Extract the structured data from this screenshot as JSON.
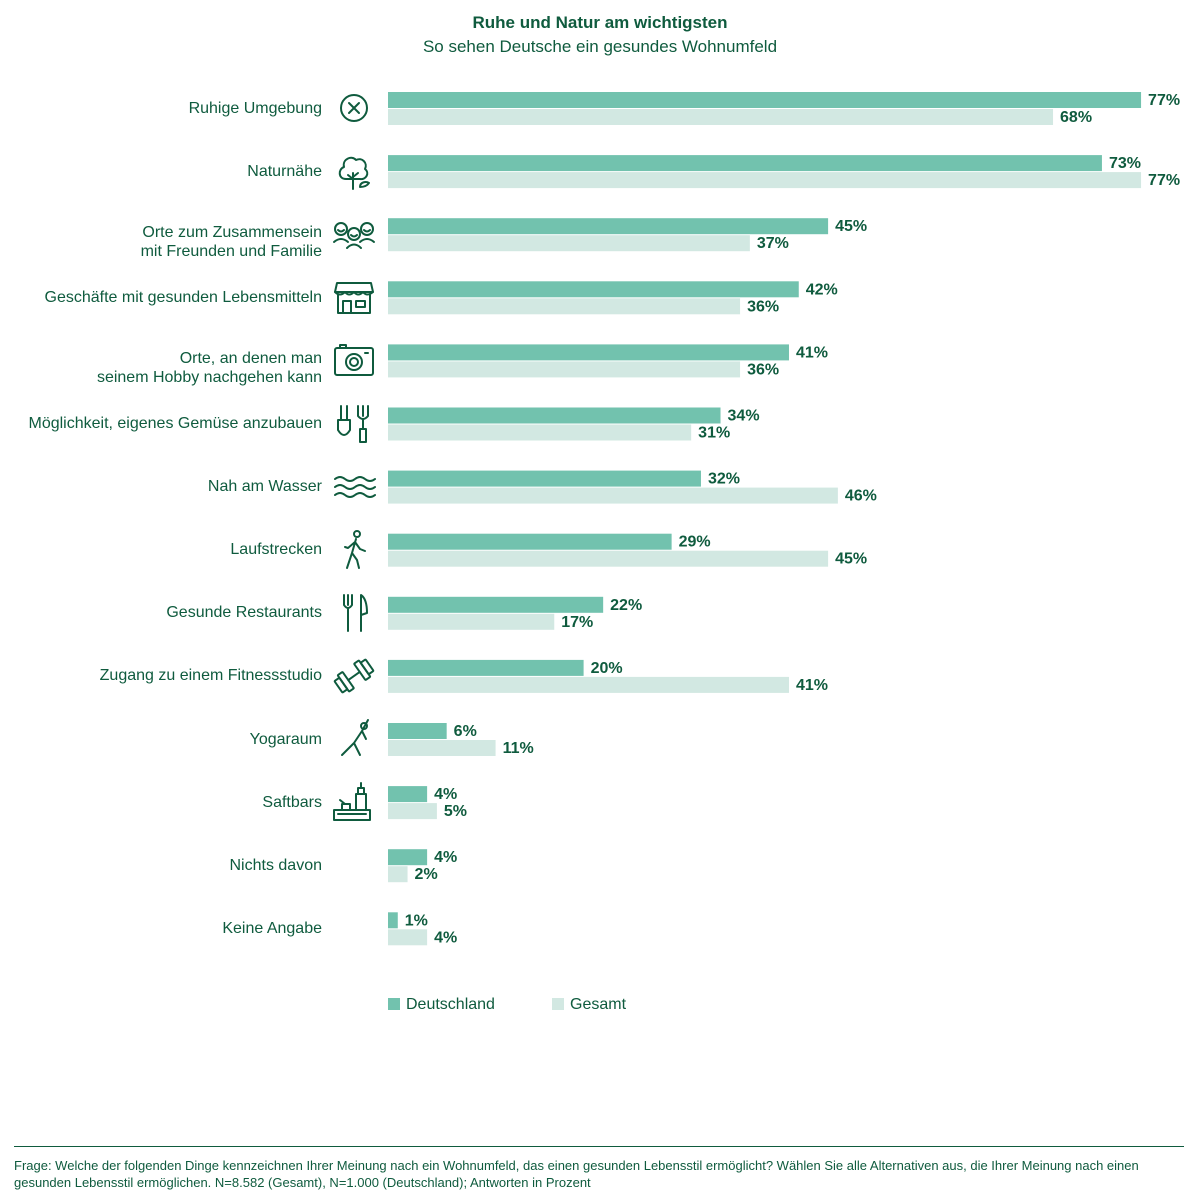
{
  "header": {
    "title": "Ruhe und Natur am wichtigsten",
    "subtitle": "So sehen Deutsche ein gesundes Wohnumfeld"
  },
  "colors": {
    "deutschland": "#72c2ae",
    "gesamt": "#d2e8e2",
    "text": "#0f5b3e"
  },
  "chart_data": {
    "type": "bar",
    "orientation": "horizontal",
    "title": "Ruhe und Natur am wichtigsten",
    "subtitle": "So sehen Deutsche ein gesundes Wohnumfeld",
    "unit": "%",
    "categories": [
      "Ruhige Umgebung",
      "Naturnähe",
      "Orte zum Zusammensein mit Freunden und Familie",
      "Geschäfte mit gesunden Lebensmitteln",
      "Orte, an denen man seinem Hobby nachgehen kann",
      "Möglichkeit, eigenes Gemüse anzubauen",
      "Nah am Wasser",
      "Laufstrecken",
      "Gesunde Restaurants",
      "Zugang zu einem Fitnessstudio",
      "Yogaraum",
      "Saftbars",
      "Nichts davon",
      "Keine Angabe"
    ],
    "category_lines": [
      [
        "Ruhige Umgebung"
      ],
      [
        "Naturnähe"
      ],
      [
        "Orte zum Zusammensein",
        "mit Freunden und Familie"
      ],
      [
        "Geschäfte mit gesunden Lebensmitteln"
      ],
      [
        "Orte, an denen man",
        "seinem Hobby nachgehen kann"
      ],
      [
        "Möglichkeit, eigenes Gemüse anzubauen"
      ],
      [
        "Nah am Wasser"
      ],
      [
        "Laufstrecken"
      ],
      [
        "Gesunde Restaurants"
      ],
      [
        "Zugang zu einem Fitnessstudio"
      ],
      [
        "Yogaraum"
      ],
      [
        "Saftbars"
      ],
      [
        "Nichts davon"
      ],
      [
        "Keine Angabe"
      ]
    ],
    "icons": [
      "x-circle-icon",
      "tree-icon",
      "people-group-icon",
      "shop-icon",
      "camera-icon",
      "garden-tools-icon",
      "water-waves-icon",
      "walking-person-icon",
      "cutlery-icon",
      "dumbbell-icon",
      "yoga-pose-icon",
      "juice-bar-icon",
      "",
      ""
    ],
    "series": [
      {
        "name": "Deutschland",
        "values": [
          77,
          73,
          45,
          42,
          41,
          34,
          32,
          29,
          22,
          20,
          6,
          4,
          4,
          1
        ]
      },
      {
        "name": "Gesamt",
        "values": [
          68,
          77,
          37,
          36,
          36,
          31,
          46,
          45,
          17,
          41,
          11,
          5,
          2,
          4
        ]
      }
    ],
    "xlim": [
      0,
      77
    ],
    "grid": false,
    "legend_position": "bottom"
  },
  "legend": {
    "deutschland": "Deutschland",
    "gesamt": "Gesamt"
  },
  "footnote": "Frage: Welche der folgenden Dinge kennzeichnen Ihrer Meinung nach ein Wohnumfeld, das einen gesunden Lebensstil ermöglicht? Wählen Sie alle Alternativen aus, die Ihrer Meinung nach einen gesunden Lebensstil ermöglichen. N=8.582 (Gesamt), N=1.000 (Deutschland); Antworten in Prozent"
}
